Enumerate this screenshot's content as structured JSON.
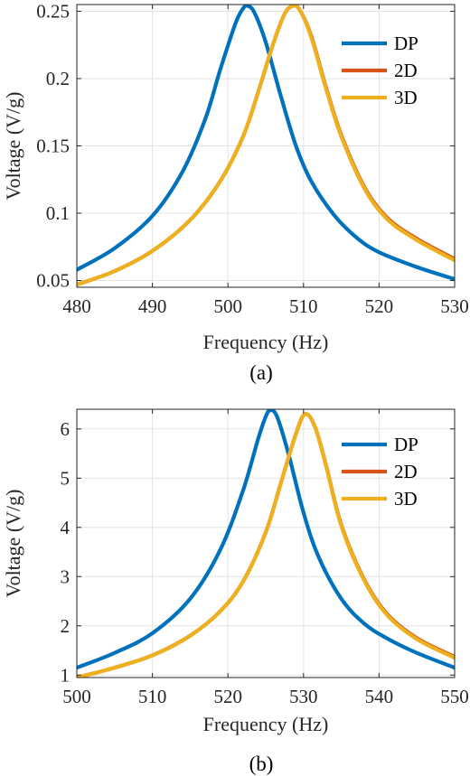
{
  "chart_data": [
    {
      "type": "line",
      "caption": "(a)",
      "xlabel": "Frequency (Hz)",
      "ylabel": "Voltage (V/g)",
      "xlim": [
        480,
        530
      ],
      "ylim": [
        0.045,
        0.255
      ],
      "xticks": [
        480,
        490,
        500,
        510,
        520,
        530
      ],
      "xtick_labels": [
        "480",
        "490",
        "500",
        "510",
        "520",
        "530"
      ],
      "yticks": [
        0.05,
        0.1,
        0.15,
        0.2,
        0.25
      ],
      "ytick_labels": [
        "0.05",
        "0.1",
        "0.15",
        "0.2",
        "0.25"
      ],
      "grid": true,
      "legend_position": "top-right",
      "series": [
        {
          "name": "DP",
          "color": "#0072BD",
          "x": [
            480,
            485,
            490,
            494,
            497,
            499,
            501,
            502,
            502.6,
            503.5,
            505,
            507,
            509,
            511,
            514,
            517,
            520,
            525,
            530
          ],
          "y": [
            0.058,
            0.074,
            0.098,
            0.131,
            0.17,
            0.207,
            0.241,
            0.252,
            0.254,
            0.249,
            0.227,
            0.187,
            0.15,
            0.124,
            0.099,
            0.082,
            0.071,
            0.06,
            0.051
          ]
        },
        {
          "name": "2D",
          "color": "#D95319",
          "x": [
            480,
            485,
            490,
            495,
            499,
            502,
            504,
            506,
            507.5,
            508.6,
            509.5,
            511,
            513,
            515,
            518,
            521,
            525,
            530
          ],
          "y": [
            0.047,
            0.057,
            0.072,
            0.095,
            0.124,
            0.157,
            0.19,
            0.226,
            0.248,
            0.254,
            0.251,
            0.232,
            0.193,
            0.158,
            0.12,
            0.097,
            0.081,
            0.066
          ]
        },
        {
          "name": "3D",
          "color": "#EDB120",
          "x": [
            480,
            485,
            490,
            495,
            499,
            502,
            504,
            506,
            507.5,
            508.6,
            509.5,
            511,
            513,
            515,
            518,
            521,
            525,
            530
          ],
          "y": [
            0.047,
            0.057,
            0.072,
            0.095,
            0.124,
            0.157,
            0.19,
            0.226,
            0.248,
            0.254,
            0.251,
            0.231,
            0.192,
            0.157,
            0.119,
            0.096,
            0.08,
            0.065
          ]
        }
      ]
    },
    {
      "type": "line",
      "caption": "(b)",
      "xlabel": "Frequency (Hz)",
      "ylabel": "Voltage (V/g)",
      "xlim": [
        500,
        550
      ],
      "ylim": [
        0.95,
        6.4
      ],
      "xticks": [
        500,
        510,
        520,
        530,
        540,
        550
      ],
      "xtick_labels": [
        "500",
        "510",
        "520",
        "530",
        "540",
        "550"
      ],
      "yticks": [
        1,
        2,
        3,
        4,
        5,
        6
      ],
      "ytick_labels": [
        "1",
        "2",
        "3",
        "4",
        "5",
        "6"
      ],
      "grid": true,
      "legend_position": "top-right",
      "series": [
        {
          "name": "DP",
          "color": "#0072BD",
          "x": [
            500,
            505,
            510,
            515,
            519,
            522,
            524,
            525,
            525.6,
            526.5,
            528,
            530,
            532,
            535,
            538,
            541,
            545,
            550
          ],
          "y": [
            1.15,
            1.45,
            1.85,
            2.55,
            3.55,
            4.75,
            5.8,
            6.25,
            6.38,
            6.25,
            5.5,
            4.3,
            3.4,
            2.55,
            2.05,
            1.75,
            1.45,
            1.15
          ]
        },
        {
          "name": "2D",
          "color": "#D95319",
          "x": [
            500,
            505,
            510,
            515,
            519,
            522,
            525,
            527,
            529,
            530.2,
            531.5,
            533,
            535,
            538,
            541,
            545,
            550
          ],
          "y": [
            0.95,
            1.15,
            1.4,
            1.8,
            2.3,
            2.9,
            3.9,
            4.9,
            5.9,
            6.3,
            6.05,
            5.25,
            4.05,
            2.95,
            2.25,
            1.75,
            1.37
          ]
        },
        {
          "name": "3D",
          "color": "#EDB120",
          "x": [
            500,
            505,
            510,
            515,
            519,
            522,
            525,
            527,
            529,
            530.2,
            531.5,
            533,
            535,
            538,
            541,
            545,
            550
          ],
          "y": [
            0.95,
            1.15,
            1.4,
            1.8,
            2.3,
            2.9,
            3.9,
            4.9,
            5.9,
            6.3,
            6.05,
            5.24,
            4.03,
            2.93,
            2.23,
            1.73,
            1.35
          ]
        }
      ]
    }
  ]
}
